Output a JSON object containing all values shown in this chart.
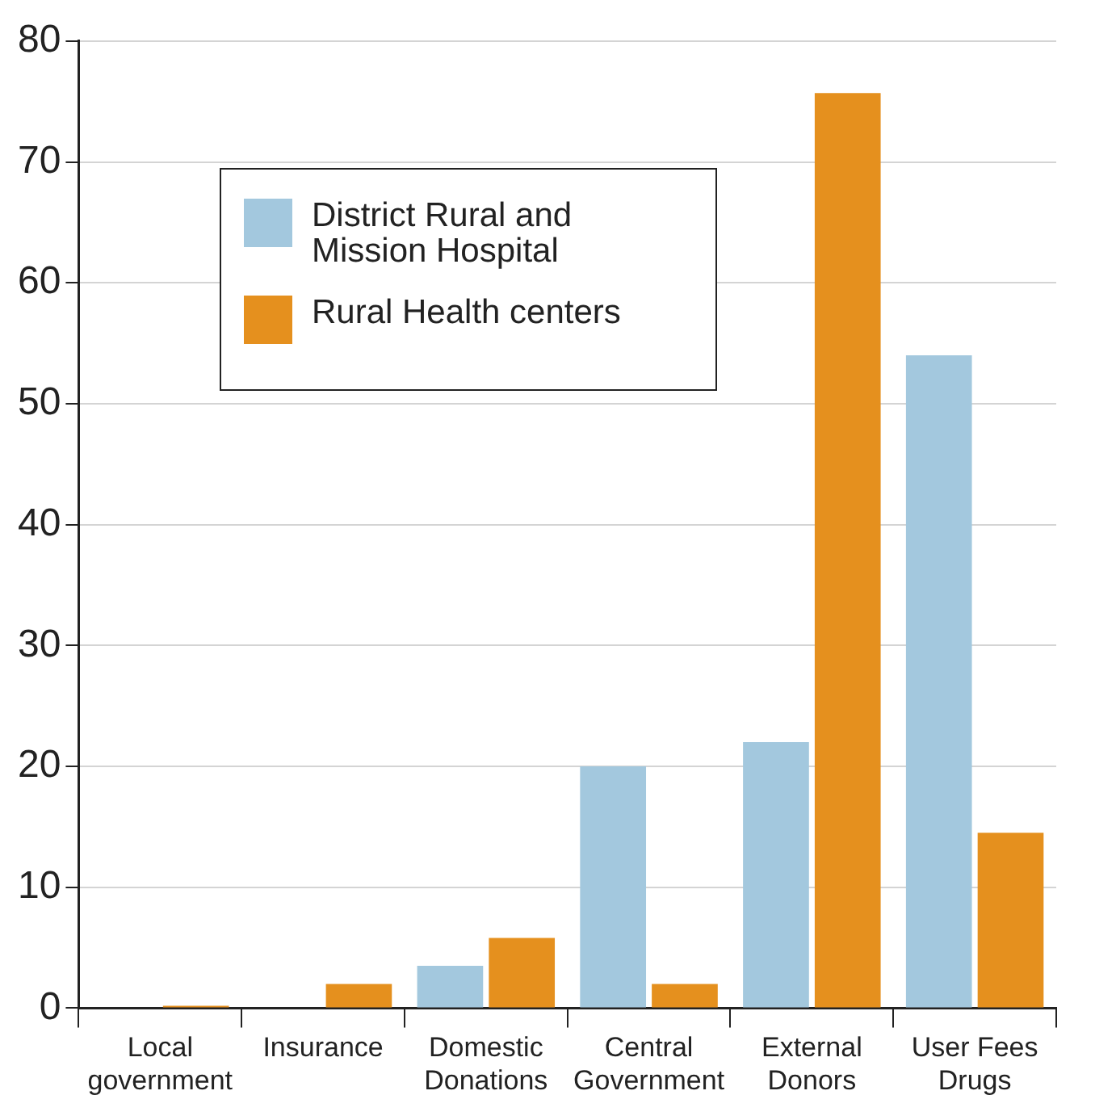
{
  "chart_data": {
    "type": "bar",
    "categories": [
      "Local government",
      "Insurance",
      "Domestic Donations",
      "Central Government",
      "External Donors",
      "User Fees Drugs"
    ],
    "series": [
      {
        "name": "District Rural and Mission Hospital",
        "color": "#a3c8de",
        "values": [
          0,
          0,
          3.5,
          20,
          22,
          54
        ]
      },
      {
        "name": "Rural Health centers",
        "color": "#e5901e",
        "values": [
          0.2,
          2,
          5.8,
          2,
          75.7,
          14.5
        ]
      }
    ],
    "ylim": [
      0,
      80
    ],
    "yticks": [
      0,
      10,
      20,
      30,
      40,
      50,
      60,
      70,
      80
    ],
    "grid": "y",
    "legend": "top left"
  }
}
